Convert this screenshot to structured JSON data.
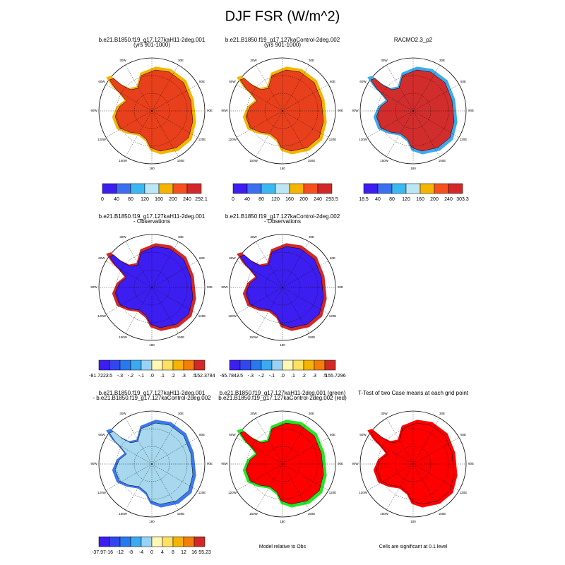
{
  "title": "DJF FSR (W/m^2)",
  "lon_labels": [
    "30E",
    "60E",
    "90E",
    "120E",
    "150E",
    "180",
    "150W",
    "120W",
    "90W",
    "60W",
    "30W"
  ],
  "panels": [
    {
      "title_lines": [
        "b.e21.B1850.f19_g17.127kaH11-2deg.001",
        "(yrs 901-1000)"
      ],
      "colorbar": [
        "0",
        "40",
        "80",
        "120",
        "160",
        "200",
        "240",
        "292.1"
      ]
    },
    {
      "title_lines": [
        "b.e21.B1850.f19_g17.127kaControl-2deg.002",
        "(yrs 901-1000)"
      ],
      "colorbar": [
        "0",
        "40",
        "80",
        "120",
        "160",
        "200",
        "240",
        "293.5"
      ]
    },
    {
      "title_lines": [
        "RACMO2.3_p2"
      ],
      "colorbar": [
        "18.5",
        "40",
        "80",
        "120",
        "160",
        "200",
        "240",
        "303.3"
      ]
    },
    {
      "title_lines": [
        "b.e21.B1850.f19_g17.127kaH11-2deg.001",
        "- Observations"
      ],
      "colorbar": [
        "-81.7222",
        "-.5",
        "-.3",
        "-.2",
        "-.1",
        ".0",
        ".1",
        ".2",
        ".3",
        ".5",
        "152.3784"
      ]
    },
    {
      "title_lines": [
        "b.e21.B1850.f19_g17.127kaControl-2deg.002",
        "- Observations"
      ],
      "colorbar": [
        "-65.7842",
        "-.5",
        "-.3",
        "-.2",
        "-.1",
        ".0",
        ".1",
        ".2",
        ".3",
        ".5",
        "155.7296"
      ]
    },
    {
      "title_lines": [
        "b.e21.B1850.f19_g17.127kaH11-2deg.001",
        "- b.e21.B1850.f19_g17.127kaControl-2deg.002"
      ],
      "colorbar": [
        "-37.97",
        "-16",
        "-12",
        "-8",
        "-4",
        "0",
        "4",
        "8",
        "12",
        "16",
        "55.23"
      ]
    },
    {
      "title_lines": [
        "b.e21.B1850.f19_g17.127kaH11-2deg.001 (green)",
        "b.e21.B1850.f19_g17.127kaControl-2deg.002 (red)"
      ],
      "note": "Model relative to Obs"
    },
    {
      "title_lines": [
        "T-Test of two Case means at each grid point"
      ],
      "note": "Cells are significant at 0.1 level"
    }
  ]
}
